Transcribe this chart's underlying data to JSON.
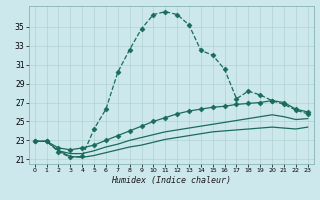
{
  "xlabel": "Humidex (Indice chaleur)",
  "background_color": "#cce8ec",
  "grid_color": "#aacccc",
  "line_color": "#1a6b5a",
  "xlim": [
    -0.5,
    23.5
  ],
  "ylim": [
    20.5,
    37.2
  ],
  "yticks": [
    21,
    23,
    25,
    27,
    29,
    31,
    33,
    35
  ],
  "xticks": [
    0,
    1,
    2,
    3,
    4,
    5,
    6,
    7,
    8,
    9,
    10,
    11,
    12,
    13,
    14,
    15,
    16,
    17,
    18,
    19,
    20,
    21,
    22,
    23
  ],
  "line1_x": [
    0,
    1,
    2,
    3,
    4,
    5,
    6,
    7,
    8,
    9,
    10,
    11,
    12,
    13,
    14,
    15,
    16,
    17,
    18,
    19,
    20,
    21,
    22,
    23
  ],
  "line1_y": [
    22.9,
    22.9,
    21.8,
    21.2,
    21.3,
    24.2,
    26.3,
    30.2,
    32.6,
    34.8,
    36.3,
    36.6,
    36.3,
    35.2,
    32.5,
    32.0,
    30.5,
    27.4,
    28.2,
    27.8,
    27.2,
    26.8,
    26.2,
    25.8
  ],
  "line2_x": [
    0,
    1,
    2,
    3,
    4,
    5,
    6,
    7,
    8,
    9,
    10,
    11,
    12,
    13,
    14,
    15,
    16,
    17,
    18,
    19,
    20,
    21,
    22,
    23
  ],
  "line2_y": [
    22.9,
    22.9,
    22.2,
    22.0,
    22.2,
    22.5,
    23.0,
    23.5,
    24.0,
    24.5,
    25.0,
    25.4,
    25.8,
    26.1,
    26.3,
    26.5,
    26.6,
    26.8,
    26.9,
    27.0,
    27.2,
    27.0,
    26.3,
    26.0
  ],
  "line3_x": [
    0,
    1,
    2,
    3,
    4,
    5,
    6,
    7,
    8,
    9,
    10,
    11,
    12,
    13,
    14,
    15,
    16,
    17,
    18,
    19,
    20,
    21,
    22,
    23
  ],
  "line3_y": [
    22.9,
    22.9,
    21.9,
    21.6,
    21.6,
    21.9,
    22.3,
    22.6,
    23.0,
    23.3,
    23.6,
    23.9,
    24.1,
    24.3,
    24.5,
    24.7,
    24.9,
    25.1,
    25.3,
    25.5,
    25.7,
    25.5,
    25.2,
    25.3
  ],
  "line4_x": [
    2,
    3,
    4,
    5,
    6,
    7,
    8,
    9,
    10,
    11,
    12,
    13,
    14,
    15,
    16,
    17,
    18,
    19,
    20,
    21,
    22,
    23
  ],
  "line4_y": [
    21.9,
    21.3,
    21.2,
    21.4,
    21.7,
    22.0,
    22.3,
    22.5,
    22.8,
    23.1,
    23.3,
    23.5,
    23.7,
    23.9,
    24.0,
    24.1,
    24.2,
    24.3,
    24.4,
    24.3,
    24.2,
    24.4
  ],
  "markersize": 2.5,
  "linewidth": 0.9
}
